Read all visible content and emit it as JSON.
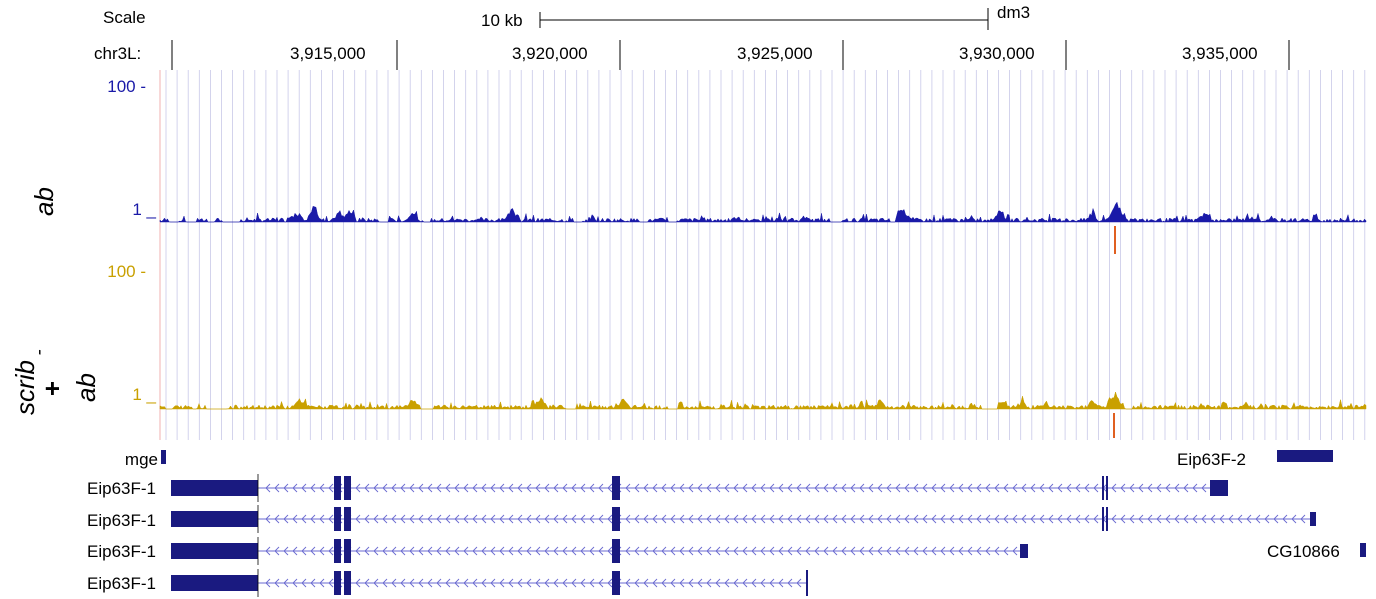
{
  "scale_bar": {
    "label": "Scale",
    "length_label": "10 kb",
    "assembly": "dm3"
  },
  "ruler": {
    "chrom_label": "chr3L:",
    "ticks": [
      "3,915,000",
      "3,920,000",
      "3,925,000",
      "3,930,000",
      "3,935,000"
    ]
  },
  "tracks": [
    {
      "id": "ab",
      "side_label": "ab",
      "y_max_label": "100 -",
      "y_min_label": "1 _",
      "color": "#1a1aa8"
    },
    {
      "id": "scrib_ab",
      "side_label_lines": [
        "scrib",
        "-",
        "+",
        "ab"
      ],
      "y_max_label": "100 -",
      "y_min_label": "1 _",
      "color": "#c9a000"
    }
  ],
  "genes": [
    {
      "name": "mge",
      "color": "#1a1a80"
    },
    {
      "name": "Eip63F-2",
      "color": "#1a1a80"
    },
    {
      "name": "Eip63F-1",
      "color": "#1a1a80"
    },
    {
      "name": "Eip63F-1",
      "color": "#1a1a80"
    },
    {
      "name": "Eip63F-1",
      "color": "#1a1a80"
    },
    {
      "name": "Eip63F-1",
      "color": "#1a1a80"
    },
    {
      "name": "CG10866",
      "color": "#1a1a80"
    }
  ],
  "highlight_color": "#e06020",
  "grid_color": "#c8c8e8"
}
